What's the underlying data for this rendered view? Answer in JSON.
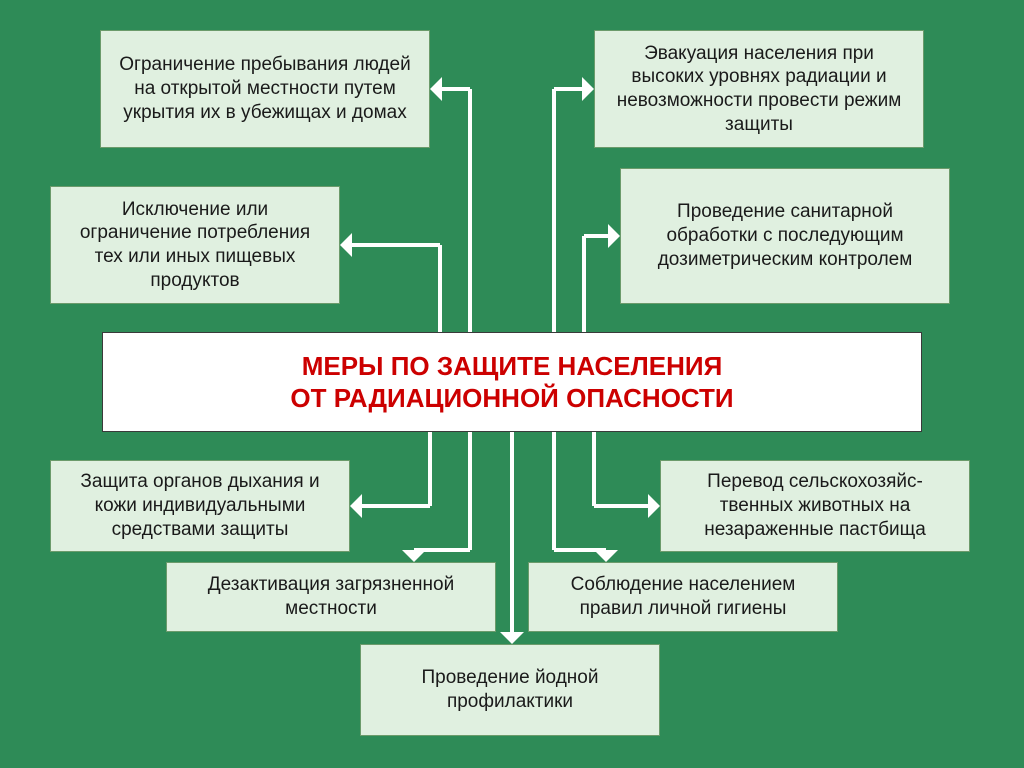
{
  "diagram": {
    "type": "flowchart",
    "background_color": "#2e8b57",
    "box_bg_color": "#e0f0e0",
    "box_border_color": "#6b9b6b",
    "center_bg_color": "#ffffff",
    "center_border_color": "#3a3a3a",
    "center_text_color": "#cc0000",
    "box_text_color": "#1a1a1a",
    "arrow_color": "#ffffff",
    "font_family": "Arial",
    "center_fontsize": 26,
    "box_fontsize": 19,
    "center": {
      "line1": "МЕРЫ ПО ЗАЩИТЕ НАСЕЛЕНИЯ",
      "line2": "ОТ РАДИАЦИОННОЙ ОПАСНОСТИ"
    },
    "boxes": {
      "top_left": "Ограничение пребывания людей на открытой местности путем укрытия их в убежищах и домах",
      "top_right": "Эвакуация населения при высоких уровнях радиации и невозможности провести режим защиты",
      "mid_left": "Исключение или ограничение потребления тех или иных пищевых продуктов",
      "mid_right": "Проведение санитарной обработки с последующим дозиметрическим контролем",
      "bot_left": "Защита органов дыхания и кожи индивидуальными средствами защиты",
      "bot_right": "Перевод сельскохозяйс-твенных животных на незараженные пастбища",
      "bot_mid_left": "Дезактивация загрязненной местности",
      "bot_mid_right": "Соблюдение населением правил личной гигиены",
      "bot_center": "Проведение йодной профилактики"
    }
  }
}
